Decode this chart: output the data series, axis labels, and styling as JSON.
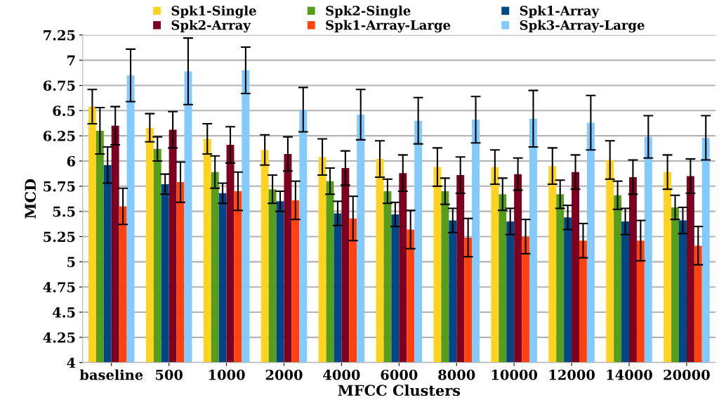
{
  "chart_data": {
    "type": "bar",
    "xlabel": "MFCC Clusters",
    "ylabel": "MCD",
    "categories": [
      "baseline",
      "500",
      "1000",
      "2000",
      "4000",
      "6000",
      "8000",
      "10000",
      "12000",
      "14000",
      "20000"
    ],
    "ylim": [
      4,
      7.25
    ],
    "yticks": [
      4,
      4.25,
      4.5,
      4.75,
      5,
      5.25,
      5.5,
      5.75,
      6,
      6.25,
      6.5,
      6.75,
      7,
      7.25
    ],
    "grid": "y",
    "legend": "top",
    "series": [
      {
        "name": "Spk1-Single",
        "color": "#ffd320",
        "values": [
          6.54,
          6.33,
          6.22,
          6.11,
          6.04,
          6.02,
          5.94,
          5.94,
          5.95,
          6.01,
          5.89
        ],
        "errors": [
          0.17,
          0.14,
          0.15,
          0.15,
          0.18,
          0.18,
          0.19,
          0.17,
          0.18,
          0.19,
          0.17
        ]
      },
      {
        "name": "Spk2-Single",
        "color": "#579d1c",
        "values": [
          6.3,
          6.12,
          5.89,
          5.72,
          5.8,
          5.7,
          5.7,
          5.67,
          5.67,
          5.66,
          5.54
        ],
        "errors": [
          0.23,
          0.12,
          0.16,
          0.14,
          0.13,
          0.12,
          0.13,
          0.16,
          0.14,
          0.14,
          0.12
        ]
      },
      {
        "name": "Spk1-Array",
        "color": "#004586",
        "values": [
          5.96,
          5.77,
          5.68,
          5.6,
          5.48,
          5.47,
          5.41,
          5.4,
          5.44,
          5.4,
          5.41
        ],
        "errors": [
          0.18,
          0.1,
          0.1,
          0.1,
          0.12,
          0.12,
          0.12,
          0.13,
          0.12,
          0.13,
          0.13
        ]
      },
      {
        "name": "Spk2-Array",
        "color": "#7e0021",
        "values": [
          6.35,
          6.31,
          6.16,
          6.07,
          5.93,
          5.88,
          5.86,
          5.87,
          5.89,
          5.84,
          5.85
        ],
        "errors": [
          0.19,
          0.18,
          0.18,
          0.17,
          0.17,
          0.18,
          0.18,
          0.16,
          0.17,
          0.17,
          0.17
        ]
      },
      {
        "name": "Spk1-Array-Large",
        "color": "#ff420e",
        "values": [
          5.55,
          5.79,
          5.7,
          5.61,
          5.43,
          5.32,
          5.24,
          5.25,
          5.21,
          5.21,
          5.16
        ],
        "errors": [
          0.18,
          0.2,
          0.19,
          0.19,
          0.22,
          0.19,
          0.19,
          0.17,
          0.17,
          0.2,
          0.19
        ]
      },
      {
        "name": "Spk3-Array-Large",
        "color": "#83caff",
        "values": [
          6.85,
          6.89,
          6.9,
          6.51,
          6.46,
          6.4,
          6.41,
          6.42,
          6.38,
          6.24,
          6.23
        ],
        "errors": [
          0.26,
          0.33,
          0.23,
          0.22,
          0.25,
          0.23,
          0.23,
          0.28,
          0.27,
          0.21,
          0.22
        ]
      }
    ]
  }
}
